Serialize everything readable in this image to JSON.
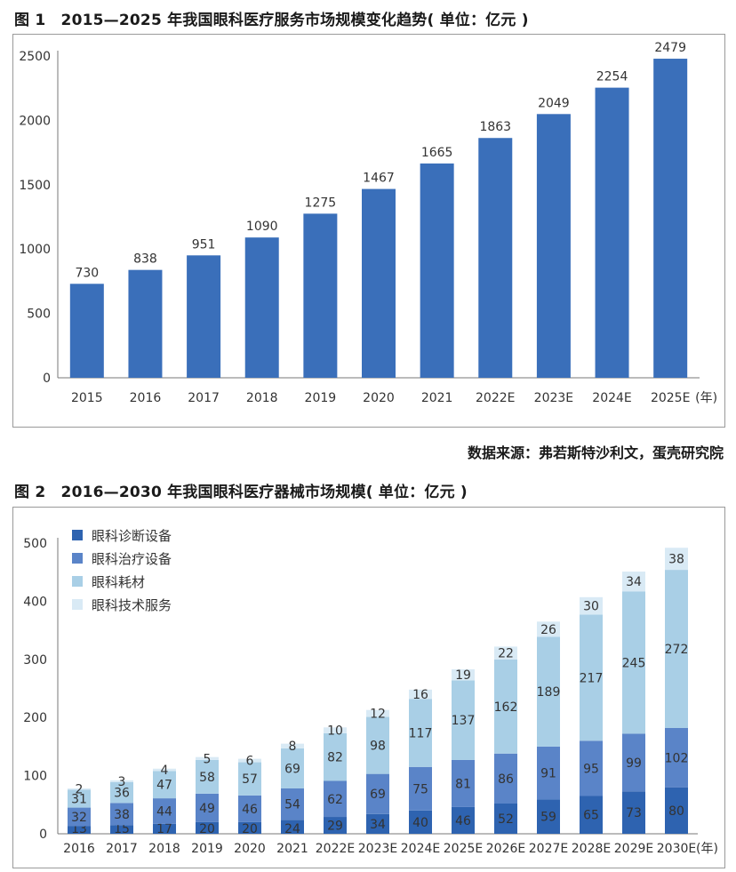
{
  "figure1": {
    "title": "图 1　2015—2025 年我国眼科医疗服务市场规模变化趋势( 单位：亿元 )",
    "bar_color": "#3a6fba"
  },
  "source_note": "数据来源：弗若斯特沙利文，蛋壳研究院",
  "figure2": {
    "title": "图 2　2016—2030 年我国眼科医疗器械市场规模( 单位：亿元 )",
    "series_colors": [
      "#2e63b0",
      "#5a84c8",
      "#a9cfe6",
      "#d9eaf5"
    ]
  },
  "chart_data": [
    {
      "type": "bar",
      "title": "2015—2025 年我国眼科医疗服务市场规模变化趋势( 单位：亿元 )",
      "categories": [
        "2015",
        "2016",
        "2017",
        "2018",
        "2019",
        "2020",
        "2021",
        "2022E",
        "2023E",
        "2024E",
        "2025E"
      ],
      "values": [
        730,
        838,
        951,
        1090,
        1275,
        1467,
        1665,
        1863,
        2049,
        2254,
        2479
      ],
      "yticks": [
        0,
        500,
        1000,
        1500,
        2000,
        2500
      ],
      "ylim": [
        0,
        2500
      ],
      "xunit": "(年)",
      "xlabel": "",
      "ylabel": ""
    },
    {
      "type": "bar",
      "stacked": true,
      "title": "2016—2030 年我国眼科医疗器械市场规模( 单位：亿元 )",
      "categories": [
        "2016",
        "2017",
        "2018",
        "2019",
        "2020",
        "2021",
        "2022E",
        "2023E",
        "2024E",
        "2025E",
        "2026E",
        "2027E",
        "2028E",
        "2029E",
        "2030E"
      ],
      "series": [
        {
          "name": "眼科诊断设备",
          "values": [
            13,
            15,
            17,
            20,
            20,
            24,
            29,
            34,
            40,
            46,
            52,
            59,
            65,
            73,
            80
          ]
        },
        {
          "name": "眼科治疗设备",
          "values": [
            32,
            38,
            44,
            49,
            46,
            54,
            62,
            69,
            75,
            81,
            86,
            91,
            95,
            99,
            102
          ]
        },
        {
          "name": "眼科耗材",
          "values": [
            31,
            36,
            47,
            58,
            57,
            69,
            82,
            98,
            117,
            137,
            162,
            189,
            217,
            245,
            272
          ]
        },
        {
          "name": "眼科技术服务",
          "values": [
            2,
            3,
            4,
            5,
            6,
            8,
            10,
            12,
            16,
            19,
            22,
            26,
            30,
            34,
            38
          ]
        }
      ],
      "yticks": [
        0,
        100,
        200,
        300,
        400,
        500
      ],
      "ylim": [
        0,
        500
      ],
      "xunit": "(年)",
      "legend": "top-left",
      "xlabel": "",
      "ylabel": ""
    }
  ]
}
